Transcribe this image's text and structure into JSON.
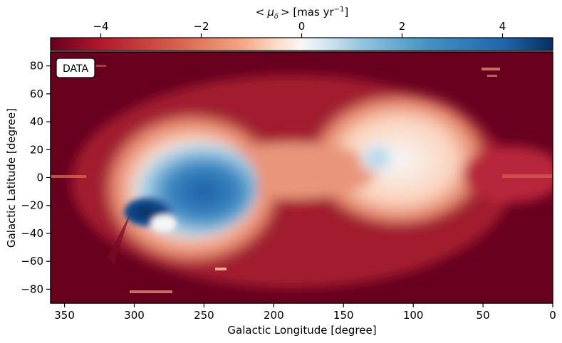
{
  "chart_data": {
    "type": "heatmap",
    "panel_label": "DATA",
    "xlabel": "Galactic Longitude [degree]",
    "ylabel": "Galactic Latitude [degree]",
    "xlim": [
      360,
      0
    ],
    "ylim": [
      -90,
      90
    ],
    "x_ticks": [
      350,
      300,
      250,
      200,
      150,
      100,
      50,
      0
    ],
    "y_ticks": [
      -80,
      -60,
      -40,
      -20,
      0,
      20,
      40,
      60,
      80
    ],
    "colorbar": {
      "label": "< μ_δ >  [mas yr⁻¹]",
      "label_parts": {
        "pre": "<",
        "mu": "μ",
        "sub": "δ",
        "post": ">  [mas yr",
        "exp": "−1",
        "close": "]"
      },
      "vmin": -5,
      "vmax": 5,
      "ticks": [
        -4,
        -2,
        0,
        2,
        4
      ],
      "tick_labels": [
        "−4",
        "−2",
        "0",
        "2",
        "4"
      ],
      "colormap": "RdBu",
      "position": "top"
    },
    "features": [
      {
        "name": "blue-lobe",
        "l": 265,
        "b": -10,
        "value": 3.5
      },
      {
        "name": "deep-blue-core",
        "l": 290,
        "b": -28,
        "value": 4.8
      },
      {
        "name": "white-spot",
        "l": 277,
        "b": -33,
        "value": 0.2
      },
      {
        "name": "light-blue-patch",
        "l": 125,
        "b": 12,
        "value": 1.8
      },
      {
        "name": "background",
        "value": -5
      }
    ],
    "colors": {
      "dark_red": "#67001f",
      "red": "#b2182b",
      "light_red": "#f4a582",
      "white": "#f7f7f7",
      "light_blue": "#92c5de",
      "blue": "#2166ac",
      "dark_blue": "#053061"
    }
  }
}
